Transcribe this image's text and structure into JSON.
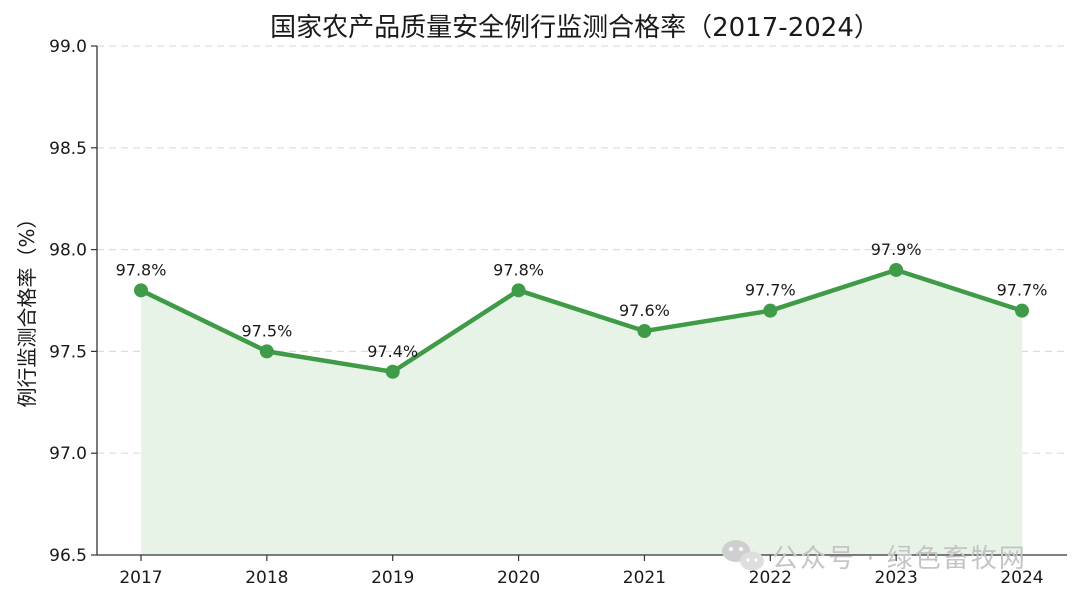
{
  "chart_data": {
    "type": "area",
    "title": "国家农产品质量安全例行监测合格率（2017-2024）",
    "xlabel": "",
    "ylabel": "例行监测合格率（%）",
    "categories": [
      "2017",
      "2018",
      "2019",
      "2020",
      "2021",
      "2022",
      "2023",
      "2024"
    ],
    "values": [
      97.8,
      97.5,
      97.4,
      97.8,
      97.6,
      97.7,
      97.9,
      97.7
    ],
    "data_labels": [
      "97.8%",
      "97.5%",
      "97.4%",
      "97.8%",
      "97.6%",
      "97.7%",
      "97.9%",
      "97.7%"
    ],
    "ylim": [
      96.5,
      99.0
    ],
    "yticks": [
      96.5,
      97.0,
      97.5,
      98.0,
      98.5,
      99.0
    ],
    "ytick_labels": [
      "96.5",
      "97.0",
      "97.5",
      "98.0",
      "98.5",
      "99.0"
    ],
    "grid": "horizontal dashed",
    "legend": "none",
    "colors": {
      "line": "#3f9b47",
      "fill": "#e8f3e7",
      "grid": "#dddddd",
      "axis": "#333333"
    }
  },
  "watermark": {
    "icon": "wechat-icon",
    "text": "公众号 · 绿色畜牧网"
  }
}
